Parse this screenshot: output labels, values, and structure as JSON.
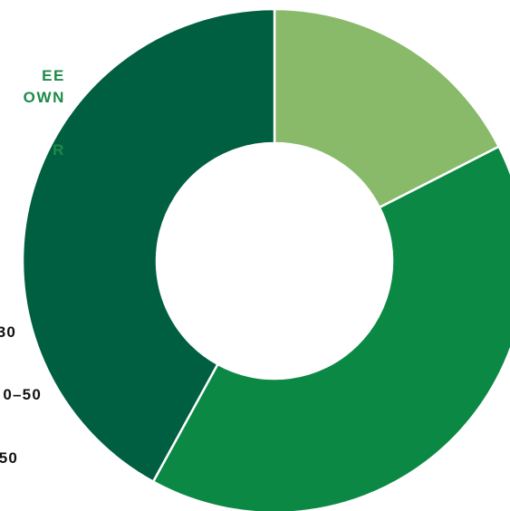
{
  "legend_heading": {
    "line_1": "EE",
    "line_2": "OWN",
    "line_3": "R"
  },
  "colors": {
    "dark": "#005f40",
    "medium": "#0b8843",
    "light": "#88ba69",
    "heading": "#1d8a48",
    "label": "#111111",
    "divider": "#ffffff"
  },
  "chart_data": {
    "type": "pie",
    "variant": "donut",
    "title": "",
    "categories": [
      "50",
      "0–50",
      "30"
    ],
    "values": [
      17.5,
      40.5,
      42.0
    ],
    "unit": "%",
    "start_angle_deg": 0,
    "direction": "clockwise",
    "colors": [
      "#88ba69",
      "#0b8843",
      "#005f40"
    ],
    "legend_position": "left",
    "legend_labels": [
      "30",
      "0–50",
      "50"
    ]
  }
}
